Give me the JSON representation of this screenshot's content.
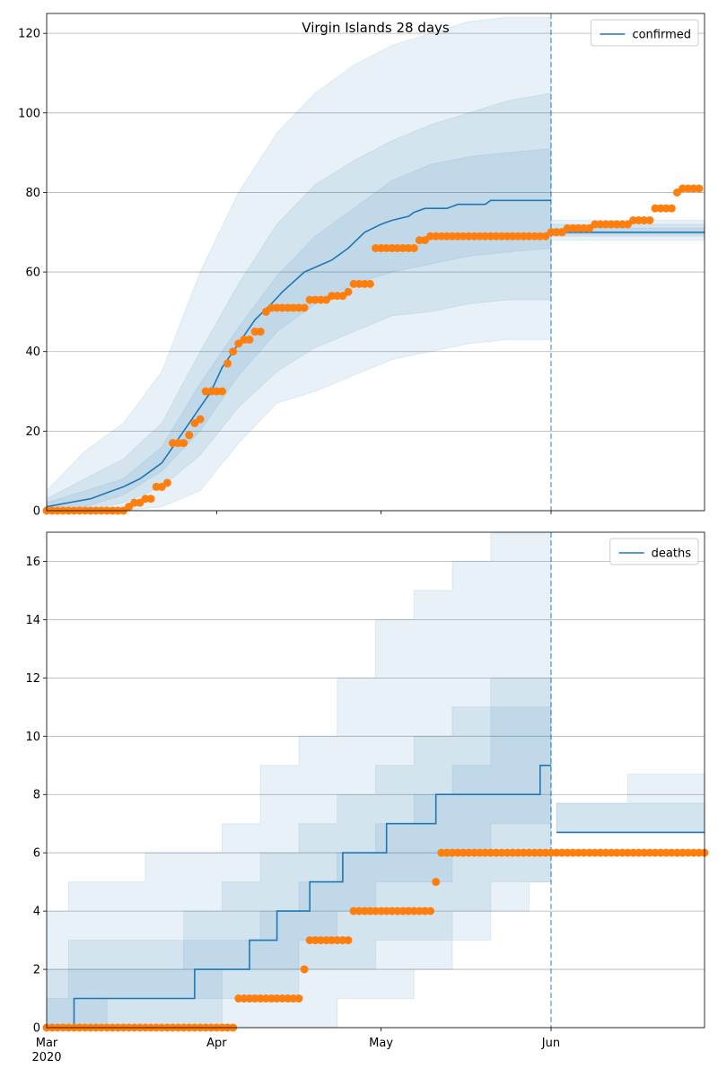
{
  "chart_data": [
    {
      "type": "line",
      "title": "Virgin Islands 28 days",
      "drawstyle": "linear",
      "xlim": [
        0,
        120
      ],
      "xticks": [
        0,
        31,
        61,
        92
      ],
      "xtick_labels": false,
      "ylim": [
        0,
        125
      ],
      "yticks": [
        0,
        20,
        40,
        60,
        80,
        100,
        120
      ],
      "grid": "y",
      "legend": "upper right",
      "vline": 92,
      "bands": {
        "x": [
          0,
          7,
          14,
          21,
          28,
          35,
          42,
          49,
          56,
          63,
          70,
          77,
          84,
          92,
          92,
          92,
          120
        ],
        "color": "#1f77b4",
        "opacity": 0.1,
        "list": [
          {
            "upper": [
              5,
              15,
              22,
              35,
              60,
              80,
              95,
              105,
              112,
              117,
              120,
              123,
              124,
              124,
              null,
              73,
              73
            ],
            "lower": [
              0,
              0,
              0,
              1,
              5,
              17,
              27,
              30,
              34,
              38,
              40,
              42,
              43,
              43,
              null,
              68,
              68
            ]
          },
          {
            "upper": [
              3,
              8,
              13,
              22,
              40,
              57,
              72,
              82,
              88,
              93,
              97,
              100,
              103,
              105,
              null,
              72,
              72
            ],
            "lower": [
              0,
              0,
              2,
              6,
              14,
              26,
              35,
              41,
              45,
              49,
              50,
              52,
              53,
              53,
              null,
              69,
              69
            ]
          },
          {
            "upper": [
              2,
              5,
              8,
              16,
              32,
              46,
              59,
              69,
              76,
              83,
              87,
              89,
              90,
              91,
              null,
              71,
              71
            ],
            "lower": [
              0,
              1,
              4,
              10,
              20,
              34,
              45,
              52,
              57,
              60,
              62,
              64,
              65,
              66,
              null,
              69.5,
              69.5
            ]
          }
        ]
      },
      "series": [
        {
          "name": "confirmed",
          "color": "#1f77b4",
          "x": [
            0,
            4,
            8,
            10,
            12,
            14,
            17,
            19,
            21,
            22,
            24,
            27,
            30,
            32,
            35,
            38,
            41,
            43,
            47,
            52,
            55,
            58,
            61,
            63,
            66,
            67,
            69,
            73,
            75,
            80,
            81,
            92,
            92,
            92,
            120
          ],
          "values": [
            1,
            2,
            3,
            4,
            5,
            6,
            8,
            10,
            12,
            14,
            18,
            24,
            30,
            36,
            42,
            48,
            52,
            55,
            60,
            63,
            66,
            70,
            72,
            73,
            74,
            75,
            76,
            76,
            77,
            77,
            78,
            78,
            null,
            70,
            70
          ]
        }
      ],
      "points": {
        "color": "#ff7f0e",
        "x": [
          0,
          1,
          2,
          3,
          4,
          5,
          6,
          7,
          8,
          9,
          10,
          11,
          12,
          13,
          14,
          15,
          16,
          17,
          18,
          19,
          20,
          21,
          22,
          23,
          24,
          25,
          26,
          27,
          28,
          29,
          30,
          31,
          32,
          33,
          34,
          35,
          36,
          37,
          38,
          39,
          40,
          41,
          42,
          43,
          44,
          45,
          46,
          47,
          48,
          49,
          50,
          51,
          52,
          53,
          54,
          55,
          56,
          57,
          58,
          59,
          60,
          61,
          62,
          63,
          64,
          65,
          66,
          67,
          68,
          69,
          70,
          71,
          72,
          73,
          74,
          75,
          76,
          77,
          78,
          79,
          80,
          81,
          82,
          83,
          84,
          85,
          86,
          87,
          88,
          89,
          90,
          91,
          92,
          93,
          94,
          95,
          96,
          97,
          98,
          99,
          100,
          101,
          102,
          103,
          104,
          105,
          106,
          107,
          108,
          109,
          110,
          111,
          112,
          113,
          114,
          115,
          116,
          117,
          118,
          119
        ],
        "values": [
          0,
          0,
          0,
          0,
          0,
          0,
          0,
          0,
          0,
          0,
          0,
          0,
          0,
          0,
          0,
          1,
          2,
          2,
          3,
          3,
          6,
          6,
          7,
          17,
          17,
          17,
          19,
          22,
          23,
          30,
          30,
          30,
          30,
          37,
          40,
          42,
          43,
          43,
          45,
          45,
          50,
          51,
          51,
          51,
          51,
          51,
          51,
          51,
          53,
          53,
          53,
          53,
          54,
          54,
          54,
          55,
          57,
          57,
          57,
          57,
          66,
          66,
          66,
          66,
          66,
          66,
          66,
          66,
          68,
          68,
          69,
          69,
          69,
          69,
          69,
          69,
          69,
          69,
          69,
          69,
          69,
          69,
          69,
          69,
          69,
          69,
          69,
          69,
          69,
          69,
          69,
          69,
          70,
          70,
          70,
          71,
          71,
          71,
          71,
          71,
          72,
          72,
          72,
          72,
          72,
          72,
          72,
          73,
          73,
          73,
          73,
          76,
          76,
          76,
          76,
          80,
          81,
          81,
          81,
          81
        ]
      }
    },
    {
      "type": "line",
      "drawstyle": "steps-post",
      "xlim": [
        0,
        120
      ],
      "xticks": [
        {
          "value": 0,
          "label": "Mar",
          "sublabel": "2020"
        },
        {
          "value": 31,
          "label": "Apr"
        },
        {
          "value": 61,
          "label": "May"
        },
        {
          "value": 92,
          "label": "Jun"
        }
      ],
      "xtick_labels": true,
      "ylim": [
        0,
        17
      ],
      "yticks": [
        0,
        2,
        4,
        6,
        8,
        10,
        12,
        14,
        16
      ],
      "grid": "y",
      "legend": "upper right",
      "vline": 92,
      "bands": {
        "x": [
          0,
          4,
          11,
          18,
          25,
          32,
          39,
          46,
          53,
          60,
          67,
          74,
          81,
          88,
          92,
          92,
          93,
          106,
          120
        ],
        "color": "#1f77b4",
        "opacity": 0.1,
        "list": [
          {
            "upper": [
              4,
              5,
              5,
              6,
              6,
              7,
              9,
              10,
              12,
              14,
              15,
              16,
              17,
              17,
              17,
              null,
              7.7,
              8.7,
              8.7
            ],
            "lower": [
              0,
              0,
              0,
              0,
              0,
              0,
              0,
              0,
              1,
              1,
              2,
              3,
              4,
              5,
              5,
              null,
              6.7,
              6.7,
              6.7
            ]
          },
          {
            "upper": [
              2,
              3,
              3,
              3,
              4,
              5,
              6,
              7,
              8,
              9,
              10,
              11,
              12,
              12,
              12,
              null,
              7.7,
              7.7,
              7.7
            ],
            "lower": [
              0,
              0,
              0,
              0,
              0,
              1,
              1,
              2,
              2,
              3,
              3,
              4,
              5,
              5,
              5,
              null,
              6.7,
              6.7,
              6.7
            ]
          },
          {
            "upper": [
              1,
              2,
              2,
              2,
              3,
              3,
              4,
              5,
              6,
              7,
              8,
              9,
              11,
              11,
              11,
              null,
              6.7,
              6.7,
              6.7
            ],
            "lower": [
              0,
              0,
              1,
              1,
              1,
              2,
              2,
              3,
              4,
              5,
              5,
              6,
              7,
              7,
              7,
              null,
              6.7,
              6.7,
              6.7
            ]
          }
        ]
      },
      "series": [
        {
          "name": "deaths",
          "color": "#1f77b4",
          "x": [
            0,
            5,
            27,
            37,
            42,
            48,
            54,
            62,
            71,
            90,
            92,
            92,
            93,
            120
          ],
          "values": [
            0,
            1,
            2,
            3,
            4,
            5,
            6,
            7,
            8,
            9,
            9,
            null,
            6.7,
            6.7
          ]
        }
      ],
      "points": {
        "color": "#ff7f0e",
        "x": [
          0,
          1,
          2,
          3,
          4,
          5,
          6,
          7,
          8,
          9,
          10,
          11,
          12,
          13,
          14,
          15,
          16,
          17,
          18,
          19,
          20,
          21,
          22,
          23,
          24,
          25,
          26,
          27,
          28,
          29,
          30,
          31,
          32,
          33,
          34,
          35,
          36,
          37,
          38,
          39,
          40,
          41,
          42,
          43,
          44,
          45,
          46,
          47,
          48,
          49,
          50,
          51,
          52,
          53,
          54,
          55,
          56,
          57,
          58,
          59,
          60,
          61,
          62,
          63,
          64,
          65,
          66,
          67,
          68,
          69,
          70,
          71,
          72,
          73,
          74,
          75,
          76,
          77,
          78,
          79,
          80,
          81,
          82,
          83,
          84,
          85,
          86,
          87,
          88,
          89,
          90,
          91,
          92,
          93,
          94,
          95,
          96,
          97,
          98,
          99,
          100,
          101,
          102,
          103,
          104,
          105,
          106,
          107,
          108,
          109,
          110,
          111,
          112,
          113,
          114,
          115,
          116,
          117,
          118,
          119,
          120
        ],
        "values": [
          0,
          0,
          0,
          0,
          0,
          0,
          0,
          0,
          0,
          0,
          0,
          0,
          0,
          0,
          0,
          0,
          0,
          0,
          0,
          0,
          0,
          0,
          0,
          0,
          0,
          0,
          0,
          0,
          0,
          0,
          0,
          0,
          0,
          0,
          0,
          1,
          1,
          1,
          1,
          1,
          1,
          1,
          1,
          1,
          1,
          1,
          1,
          2,
          3,
          3,
          3,
          3,
          3,
          3,
          3,
          3,
          4,
          4,
          4,
          4,
          4,
          4,
          4,
          4,
          4,
          4,
          4,
          4,
          4,
          4,
          4,
          5,
          6,
          6,
          6,
          6,
          6,
          6,
          6,
          6,
          6,
          6,
          6,
          6,
          6,
          6,
          6,
          6,
          6,
          6,
          6,
          6,
          6,
          6,
          6,
          6,
          6,
          6,
          6,
          6,
          6,
          6,
          6,
          6,
          6,
          6,
          6,
          6,
          6,
          6,
          6,
          6,
          6,
          6,
          6,
          6,
          6,
          6,
          6,
          6,
          6
        ]
      }
    }
  ]
}
